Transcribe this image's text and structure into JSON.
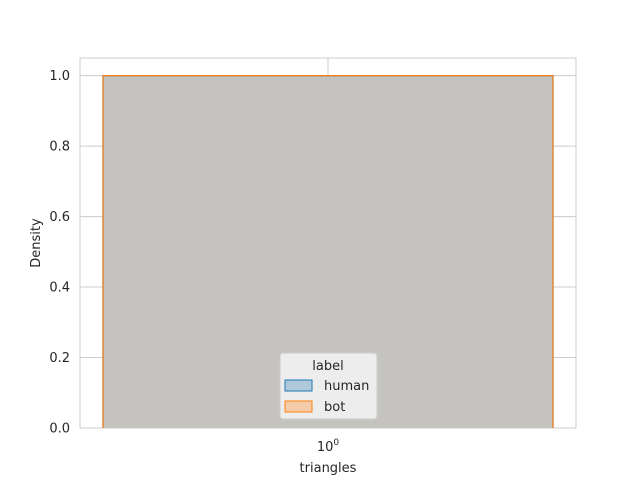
{
  "chart_data": {
    "type": "histogram",
    "xlabel": "triangles",
    "ylabel": "Density",
    "x_scale": "log",
    "x_ticks": [
      {
        "base": "10",
        "exp": "0"
      }
    ],
    "ylim": [
      0,
      1.05
    ],
    "yticks": [
      "0.0",
      "0.2",
      "0.4",
      "0.6",
      "0.8",
      "1.0"
    ],
    "grid": true,
    "legend": {
      "title": "label",
      "placement": "lower-center",
      "entries": [
        {
          "name": "human",
          "color": "#1f77b4"
        },
        {
          "name": "bot",
          "color": "#ff7f0e"
        }
      ]
    },
    "series": [
      {
        "name": "human",
        "bins": [
          {
            "x": 1,
            "density": 1.0
          }
        ],
        "color": "#1f77b4"
      },
      {
        "name": "bot",
        "bins": [
          {
            "x": 1,
            "density": 1.0
          }
        ],
        "color": "#ff7f0e"
      }
    ]
  }
}
